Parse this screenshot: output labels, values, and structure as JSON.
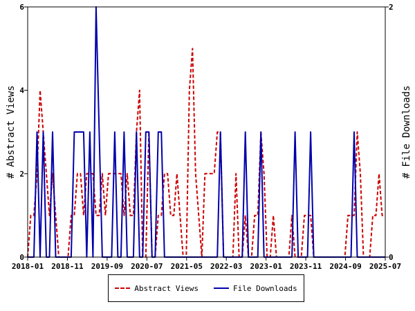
{
  "chart_data": {
    "type": "line",
    "x_ticks": [
      "2018-01",
      "2018-11",
      "2019-09",
      "2020-07",
      "2021-05",
      "2022-03",
      "2023-01",
      "2023-11",
      "2024-09",
      "2025-07"
    ],
    "y_left": {
      "label": "# Abstract Views",
      "ticks": [
        "0",
        "2",
        "4",
        "6"
      ],
      "ylim": [
        0,
        6
      ]
    },
    "y_right": {
      "label": "# File Downloads",
      "ticks": [
        "0",
        "2"
      ],
      "ylim": [
        0,
        2
      ]
    },
    "grid": false,
    "legend_position": "bottom",
    "series": [
      {
        "name": "Abstract Views",
        "axis": "left",
        "color": "#cc0000",
        "style": "dashed",
        "values": [
          0,
          1,
          1,
          2,
          4,
          3,
          2,
          1,
          2,
          1,
          0,
          0,
          0,
          0,
          1,
          1,
          2,
          2,
          1,
          2,
          2,
          2,
          1,
          1,
          2,
          1,
          2,
          2,
          2,
          2,
          2,
          1,
          2,
          1,
          1,
          3,
          4,
          0,
          0,
          3,
          0,
          0,
          1,
          1,
          2,
          2,
          1,
          1,
          2,
          1,
          0,
          0,
          4,
          5,
          2,
          1,
          0,
          2,
          2,
          2,
          2,
          3,
          3,
          0,
          0,
          0,
          0,
          2,
          0,
          0,
          1,
          0,
          0,
          1,
          1,
          3,
          2,
          0,
          0,
          1,
          0,
          0,
          0,
          0,
          0,
          1,
          0,
          0,
          0,
          1,
          1,
          1,
          0,
          0,
          0,
          0,
          0,
          0,
          0,
          0,
          0,
          0,
          0,
          1,
          1,
          1,
          3,
          2,
          0,
          0,
          0,
          1,
          1,
          2,
          1,
          1
        ]
      },
      {
        "name": "File Downloads",
        "axis": "right",
        "color": "#0000aa",
        "style": "solid",
        "values": [
          0,
          0,
          0,
          1,
          0,
          1,
          0,
          0,
          1,
          0,
          0,
          0,
          0,
          0,
          0,
          1,
          1,
          1,
          1,
          0,
          1,
          0,
          2,
          1,
          0,
          0,
          0,
          0,
          1,
          0,
          0,
          1,
          0,
          0,
          0,
          1,
          0,
          0,
          1,
          1,
          0,
          0,
          1,
          1,
          0,
          0,
          0,
          0,
          0,
          0,
          0,
          0,
          0,
          0,
          0,
          0,
          0,
          0,
          0,
          0,
          0,
          0,
          1,
          0,
          0,
          0,
          0,
          0,
          0,
          0,
          1,
          0,
          0,
          0,
          0,
          1,
          0,
          0,
          0,
          0,
          0,
          0,
          0,
          0,
          0,
          0,
          1,
          0,
          0,
          0,
          0,
          1,
          0,
          0,
          0,
          0,
          0,
          0,
          0,
          0,
          0,
          0,
          0,
          0,
          0,
          1,
          0,
          0,
          0,
          0,
          0,
          0,
          0,
          0,
          0,
          0
        ]
      }
    ]
  }
}
